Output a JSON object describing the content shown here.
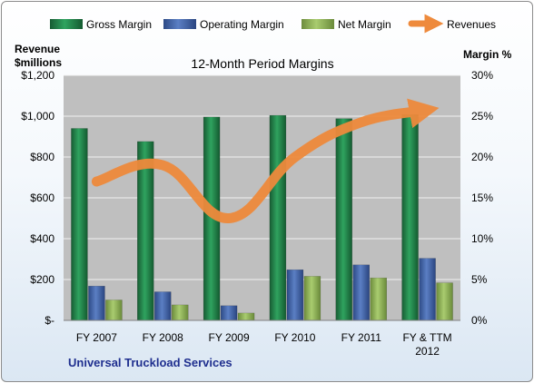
{
  "colors": {
    "gross_margin": "#1f7a45",
    "operating_margin": "#3d5fa8",
    "net_margin": "#8db255",
    "revenues": "#ee8a3c",
    "plot_background": "#bfbfbf",
    "company_text": "#1f2f8f"
  },
  "company": "Universal Truckload Services",
  "left_axis_title_line1": "Revenue",
  "left_axis_title_line2": "$millions",
  "right_axis_title": "Margin %",
  "chart_data": {
    "type": "bar",
    "title": "12-Month Period Margins",
    "categories": [
      "FY 2007",
      "FY 2008",
      "FY 2009",
      "FY 2010",
      "FY 2011",
      "FY & TTM 2012"
    ],
    "category_lines": [
      [
        "FY 2007"
      ],
      [
        "FY 2008"
      ],
      [
        "FY 2009"
      ],
      [
        "FY 2010"
      ],
      [
        "FY 2011"
      ],
      [
        "FY & TTM",
        "2012"
      ]
    ],
    "legend": [
      "Gross Margin",
      "Operating Margin",
      "Net Margin",
      "Revenues"
    ],
    "legend_position": "top",
    "grid": true,
    "y_left": {
      "ylim": [
        0,
        1200
      ],
      "ticks": [
        0,
        200,
        400,
        600,
        800,
        1000,
        1200
      ],
      "tick_labels": [
        "$-",
        "$200",
        "$400",
        "$600",
        "$800",
        "$1,000",
        "$1,200"
      ]
    },
    "y_right": {
      "ylim": [
        0,
        30
      ],
      "ticks": [
        0,
        5,
        10,
        15,
        20,
        25,
        30
      ],
      "tick_labels": [
        "0%",
        "5%",
        "10%",
        "15%",
        "20%",
        "25%",
        "30%"
      ]
    },
    "series": [
      {
        "name": "Gross Margin",
        "type": "bar",
        "axis": "right",
        "values": [
          23.5,
          21.9,
          24.9,
          25.1,
          24.7,
          25.2
        ]
      },
      {
        "name": "Operating Margin",
        "type": "bar",
        "axis": "right",
        "values": [
          4.2,
          3.5,
          1.8,
          6.2,
          6.8,
          7.6
        ]
      },
      {
        "name": "Net Margin",
        "type": "bar",
        "axis": "right",
        "values": [
          2.5,
          1.9,
          0.9,
          5.4,
          5.2,
          4.6
        ]
      },
      {
        "name": "Revenues",
        "type": "line",
        "axis": "left",
        "values": [
          680,
          760,
          500,
          800,
          970,
          1030
        ]
      }
    ]
  }
}
